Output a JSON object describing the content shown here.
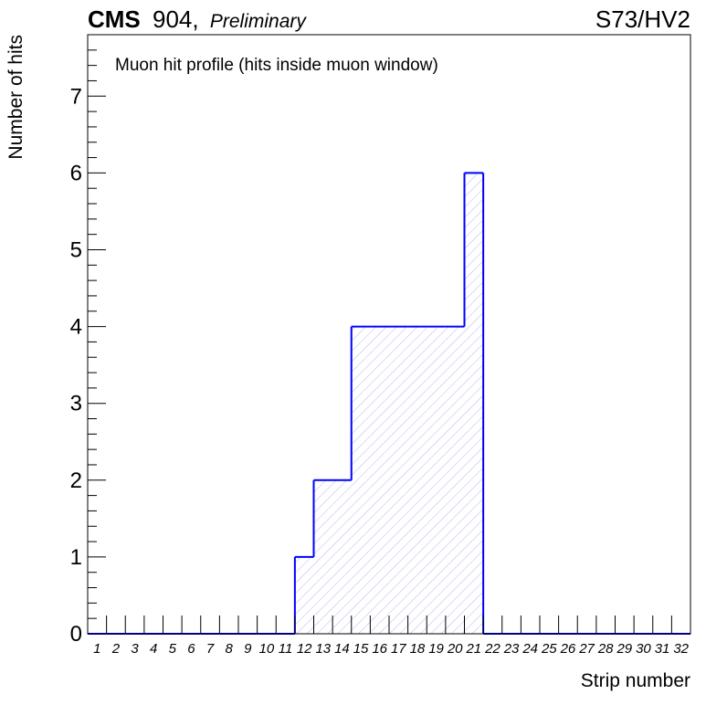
{
  "header": {
    "experiment": "CMS",
    "site": "904,",
    "status": "Preliminary",
    "run_label": "S73/HV2"
  },
  "chart_data": {
    "type": "histogram",
    "title": "Muon hit profile (hits inside muon window)",
    "xlabel": "Strip number",
    "ylabel": "Number of hits",
    "categories": [
      "1",
      "2",
      "3",
      "4",
      "5",
      "6",
      "7",
      "8",
      "9",
      "10",
      "11",
      "12",
      "13",
      "14",
      "15",
      "16",
      "17",
      "18",
      "19",
      "20",
      "21",
      "22",
      "23",
      "24",
      "25",
      "26",
      "27",
      "28",
      "29",
      "30",
      "31",
      "32"
    ],
    "values": [
      0,
      0,
      0,
      0,
      0,
      0,
      0,
      0,
      0,
      0,
      0,
      1,
      2,
      2,
      4,
      4,
      4,
      4,
      4,
      4,
      6,
      0,
      0,
      0,
      0,
      0,
      0,
      0,
      0,
      0,
      0,
      0
    ],
    "y_ticks": [
      "0",
      "1",
      "2",
      "3",
      "4",
      "5",
      "6",
      "7"
    ],
    "ylim": [
      0,
      7.8
    ],
    "grid": false,
    "line_color": "#0000ff",
    "fill_pattern": "diagonal-hatch",
    "hatch_color": "#b8b8ee"
  }
}
